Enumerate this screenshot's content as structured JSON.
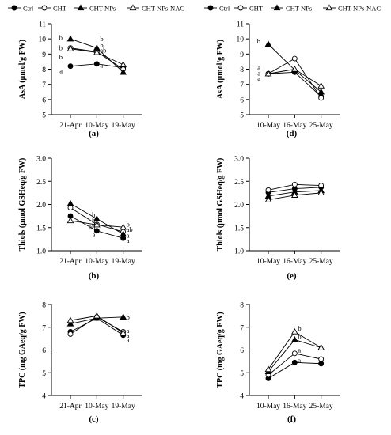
{
  "legend": [
    {
      "name": "Ctrl",
      "marker": "filled-circle"
    },
    {
      "name": "CHT",
      "marker": "open-circle"
    },
    {
      "name": "CHT-NPs",
      "marker": "filled-triangle"
    },
    {
      "name": "CHT-NPs-NAC",
      "marker": "open-triangle"
    }
  ],
  "chart_data": [
    {
      "id": "a",
      "type": "line",
      "panel_label": "(a)",
      "ylabel": "AsA (µmol/g FW)",
      "ylim": [
        5,
        11
      ],
      "yticks": [
        5,
        6,
        7,
        8,
        9,
        10,
        11
      ],
      "categories": [
        "21-Apr",
        "10-May",
        "19-May"
      ],
      "series": [
        {
          "name": "Ctrl",
          "values": [
            8.2,
            8.35,
            8.1
          ]
        },
        {
          "name": "CHT",
          "values": [
            9.4,
            9.15,
            8.0
          ]
        },
        {
          "name": "CHT-NPs",
          "values": [
            10.0,
            9.4,
            7.8
          ]
        },
        {
          "name": "CHT-NPs-NAC",
          "values": [
            9.35,
            9.1,
            8.3
          ]
        }
      ],
      "annotations": [
        {
          "text": "b",
          "cat": 0,
          "y": 10.1
        },
        {
          "text": "b",
          "cat": 0,
          "y": 9.4
        },
        {
          "text": "b",
          "cat": 0,
          "y": 8.8
        },
        {
          "text": "a",
          "cat": 0,
          "y": 7.9
        },
        {
          "text": "b",
          "cat": 1,
          "y": 10.0
        },
        {
          "text": "b",
          "cat": 1,
          "y": 9.6
        },
        {
          "text": "ab",
          "cat": 1,
          "y": 9.25
        },
        {
          "text": "a",
          "cat": 1,
          "y": 8.25
        }
      ]
    },
    {
      "id": "d",
      "type": "line",
      "panel_label": "(d)",
      "ylabel": "AsA (µmol/g FW)",
      "ylim": [
        5,
        11
      ],
      "yticks": [
        5,
        6,
        7,
        8,
        9,
        10,
        11
      ],
      "categories": [
        "10-May",
        "16-May",
        "25-May"
      ],
      "series": [
        {
          "name": "Ctrl",
          "values": [
            7.7,
            7.8,
            6.2
          ]
        },
        {
          "name": "CHT",
          "values": [
            7.7,
            8.7,
            6.1
          ]
        },
        {
          "name": "CHT-NPs",
          "values": [
            9.65,
            7.95,
            6.5
          ]
        },
        {
          "name": "CHT-NPs-NAC",
          "values": [
            7.7,
            8.0,
            6.9
          ]
        }
      ],
      "annotations": [
        {
          "text": "b",
          "cat": 0,
          "y": 9.85
        },
        {
          "text": "a",
          "cat": 0,
          "y": 8.1
        },
        {
          "text": "a",
          "cat": 0,
          "y": 7.75
        },
        {
          "text": "a",
          "cat": 0,
          "y": 7.4
        }
      ]
    },
    {
      "id": "b",
      "type": "line",
      "panel_label": "(b)",
      "ylabel": "Thiols (µmol GSHeq/g FW)",
      "ylim": [
        1.0,
        3.0
      ],
      "yticks": [
        1.0,
        1.5,
        2.0,
        2.5,
        3.0
      ],
      "categories": [
        "21-Apr",
        "10-May",
        "19-May"
      ],
      "series": [
        {
          "name": "Ctrl",
          "values": [
            1.75,
            1.43,
            1.27
          ]
        },
        {
          "name": "CHT",
          "values": [
            1.93,
            1.57,
            1.41
          ]
        },
        {
          "name": "CHT-NPs",
          "values": [
            2.02,
            1.69,
            1.36
          ]
        },
        {
          "name": "CHT-NPs-NAC",
          "values": [
            1.65,
            1.56,
            1.51
          ]
        }
      ],
      "annotations": [
        {
          "text": "b",
          "cat": 1,
          "y": 1.78
        },
        {
          "text": "b",
          "cat": 1,
          "y": 1.66
        },
        {
          "text": "ab",
          "cat": 1,
          "y": 1.52
        },
        {
          "text": "a",
          "cat": 1,
          "y": 1.35
        },
        {
          "text": "b",
          "cat": 2,
          "y": 1.57
        },
        {
          "text": "ab",
          "cat": 2,
          "y": 1.46
        },
        {
          "text": "a",
          "cat": 2,
          "y": 1.33
        },
        {
          "text": "a",
          "cat": 2,
          "y": 1.22
        }
      ]
    },
    {
      "id": "e",
      "type": "line",
      "panel_label": "(e)",
      "ylabel": "Thiols (µmol GSHeq/g FW)",
      "ylim": [
        1.0,
        3.0
      ],
      "yticks": [
        1.0,
        1.5,
        2.0,
        2.5,
        3.0
      ],
      "categories": [
        "10-May",
        "16-May",
        "25-May"
      ],
      "series": [
        {
          "name": "Ctrl",
          "values": [
            2.26,
            2.34,
            2.37
          ]
        },
        {
          "name": "CHT",
          "values": [
            2.31,
            2.43,
            2.41
          ]
        },
        {
          "name": "CHT-NPs",
          "values": [
            2.18,
            2.27,
            2.3
          ]
        },
        {
          "name": "CHT-NPs-NAC",
          "values": [
            2.1,
            2.2,
            2.25
          ]
        }
      ],
      "annotations": []
    },
    {
      "id": "c",
      "type": "line",
      "panel_label": "(c)",
      "ylabel": "TPC (mg GAeq/g FW)",
      "ylim": [
        4,
        8
      ],
      "yticks": [
        4,
        5,
        6,
        7,
        8
      ],
      "categories": [
        "21-Apr",
        "10-May",
        "19-May"
      ],
      "series": [
        {
          "name": "Ctrl",
          "values": [
            6.8,
            7.4,
            6.65
          ]
        },
        {
          "name": "CHT",
          "values": [
            6.7,
            7.45,
            6.8
          ]
        },
        {
          "name": "CHT-NPs",
          "values": [
            7.15,
            7.4,
            7.45
          ]
        },
        {
          "name": "CHT-NPs-NAC",
          "values": [
            7.3,
            7.5,
            6.75
          ]
        }
      ],
      "annotations": [
        {
          "text": "b",
          "cat": 2,
          "y": 7.45
        },
        {
          "text": "a",
          "cat": 2,
          "y": 6.85
        },
        {
          "text": "a",
          "cat": 2,
          "y": 6.65
        },
        {
          "text": "a",
          "cat": 2,
          "y": 6.45
        }
      ]
    },
    {
      "id": "f",
      "type": "line",
      "panel_label": "(f)",
      "ylabel": "TPC (mg GAeq/g FW)",
      "ylim": [
        4,
        8
      ],
      "yticks": [
        4,
        5,
        6,
        7,
        8
      ],
      "categories": [
        "10-May",
        "16-May",
        "25-May"
      ],
      "series": [
        {
          "name": "Ctrl",
          "values": [
            4.75,
            5.45,
            5.4
          ]
        },
        {
          "name": "CHT",
          "values": [
            4.9,
            5.85,
            5.6
          ]
        },
        {
          "name": "CHT-NPs",
          "values": [
            5.05,
            6.45,
            6.1
          ]
        },
        {
          "name": "CHT-NPs-NAC",
          "values": [
            5.15,
            6.8,
            6.1
          ]
        }
      ],
      "annotations": [
        {
          "text": "b",
          "cat": 1,
          "y": 6.95
        },
        {
          "text": "b",
          "cat": 1,
          "y": 6.6
        },
        {
          "text": "a",
          "cat": 1,
          "y": 6.0
        },
        {
          "text": "a",
          "cat": 1,
          "y": 5.55
        }
      ]
    }
  ]
}
